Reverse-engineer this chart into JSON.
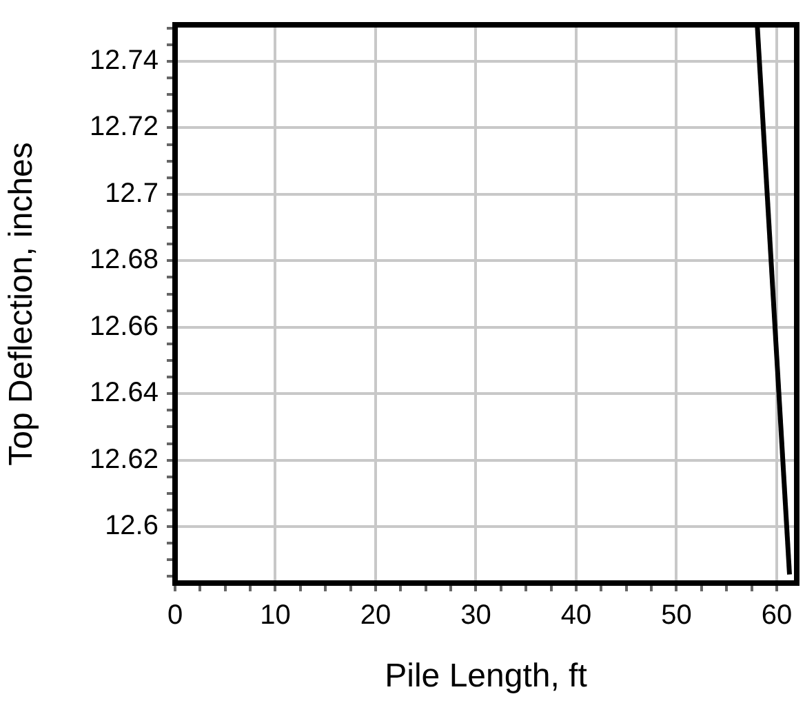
{
  "chart_data": {
    "type": "line",
    "xlabel": "Pile Length, ft",
    "ylabel": "Top Deflection, inches",
    "x": [
      58.07,
      61.28
    ],
    "series": [
      {
        "color": "#000000",
        "values": [
          12.7506,
          12.5856
        ]
      }
    ],
    "xlim": [
      0,
      62
    ],
    "xticks": [
      0,
      {
        "value": 2.5,
        "label": null
      },
      {
        "value": 5,
        "label": null
      },
      {
        "value": 7.5,
        "label": null
      },
      10,
      {
        "value": 12.5,
        "label": null
      },
      {
        "value": 15,
        "label": null
      },
      {
        "value": 17.5,
        "label": null
      },
      20,
      {
        "value": 22.5,
        "label": null
      },
      {
        "value": 25,
        "label": null
      },
      {
        "value": 27.5,
        "label": null
      },
      30,
      {
        "value": 32.5,
        "label": null
      },
      {
        "value": 35,
        "label": null
      },
      {
        "value": 37.5,
        "label": null
      },
      40,
      {
        "value": 42.5,
        "label": null
      },
      {
        "value": 45,
        "label": null
      },
      {
        "value": 47.5,
        "label": null
      },
      50,
      {
        "value": 52.5,
        "label": null
      },
      {
        "value": 55,
        "label": null
      },
      {
        "value": 57.5,
        "label": null
      },
      60
    ],
    "ylim": [
      12.583,
      12.751
    ],
    "yticks": [
      {
        "value": 12.585,
        "label": null
      },
      {
        "value": 12.59,
        "label": null
      },
      {
        "value": 12.595,
        "label": null
      },
      12.6,
      {
        "value": 12.605,
        "label": null
      },
      {
        "value": 12.61,
        "label": null
      },
      {
        "value": 12.615,
        "label": null
      },
      12.62,
      {
        "value": 12.625,
        "label": null
      },
      {
        "value": 12.63,
        "label": null
      },
      {
        "value": 12.635,
        "label": null
      },
      12.64,
      {
        "value": 12.645,
        "label": null
      },
      {
        "value": 12.65,
        "label": null
      },
      {
        "value": 12.655,
        "label": null
      },
      12.66,
      {
        "value": 12.665,
        "label": null
      },
      {
        "value": 12.67,
        "label": null
      },
      {
        "value": 12.675,
        "label": null
      },
      12.68,
      {
        "value": 12.685,
        "label": null
      },
      {
        "value": 12.69,
        "label": null
      },
      {
        "value": 12.695,
        "label": null
      },
      12.7,
      {
        "value": 12.705,
        "label": null
      },
      {
        "value": 12.71,
        "label": null
      },
      {
        "value": 12.715,
        "label": null
      },
      12.72,
      {
        "value": 12.725,
        "label": null
      },
      {
        "value": 12.73,
        "label": null
      },
      {
        "value": 12.735,
        "label": null
      },
      12.74,
      {
        "value": 12.745,
        "label": null
      },
      {
        "value": 12.75,
        "label": null
      }
    ],
    "grid": true,
    "marker": "none",
    "line_style": "solid",
    "legend": false
  }
}
